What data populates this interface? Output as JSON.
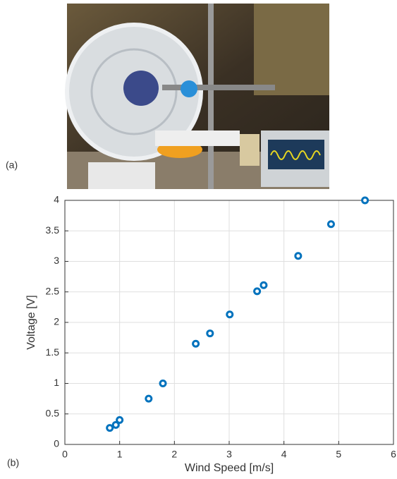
{
  "panel_labels": [
    "(a)",
    "(b)"
  ],
  "chart_data": {
    "type": "scatter",
    "xlabel": "Wind Speed [m/s]",
    "ylabel": "Voltage [V]",
    "x": [
      0.82,
      0.93,
      1.0,
      1.53,
      1.79,
      2.39,
      2.65,
      3.01,
      3.51,
      3.63,
      4.26,
      4.86,
      5.48
    ],
    "values": [
      0.27,
      0.32,
      0.4,
      0.75,
      1.0,
      1.65,
      1.82,
      2.13,
      2.51,
      2.61,
      3.09,
      3.61,
      4.0
    ],
    "color": "#0072bd",
    "xlim": [
      0,
      6
    ],
    "xticks": [
      0,
      1,
      2,
      3,
      4,
      5,
      6
    ],
    "ylim": [
      0,
      4
    ],
    "yticks": [
      0,
      0.5,
      1,
      1.5,
      2,
      2.5,
      3,
      3.5,
      4
    ],
    "grid": true
  }
}
